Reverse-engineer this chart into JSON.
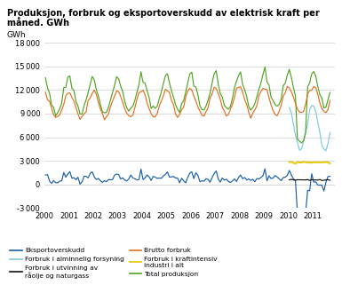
{
  "title_line1": "Produksjon, forbruk og eksportoverskudd av elektrisk kraft per",
  "title_line2": "måned. GWh",
  "ylabel": "GWh",
  "ylim": [
    -3000,
    18000
  ],
  "yticks": [
    -3000,
    0,
    3000,
    6000,
    9000,
    12000,
    15000,
    18000
  ],
  "xlim_start": 2000.0,
  "xlim_end": 2011.92,
  "xtick_years": [
    2000,
    2001,
    2002,
    2003,
    2004,
    2005,
    2006,
    2007,
    2008,
    2009,
    2010,
    2011
  ],
  "background_color": "#ffffff",
  "grid_color": "#d0d0d0",
  "colors": {
    "eksport": "#1a5fa8",
    "forbruk_utv": "#111111",
    "forbruk_kraf": "#e6c800",
    "forbruk_alm": "#7ec8e3",
    "brutto": "#e07020",
    "total_prod": "#4ea520"
  },
  "legend_entries_left": [
    {
      "label": "Eksportoverskudd",
      "color": "#1a5fa8"
    },
    {
      "label": "Forbruk i utvinning av\nråolje og naturgass",
      "color": "#111111"
    },
    {
      "label": "Forbruk i kraftintensiv\nindustri i alt",
      "color": "#e6c800"
    }
  ],
  "legend_entries_right": [
    {
      "label": "Forbruk i alminnelig forsyning",
      "color": "#7ec8e3"
    },
    {
      "label": "Brutto forbruk",
      "color": "#e07020"
    },
    {
      "label": "Total produksjon",
      "color": "#4ea520"
    }
  ]
}
